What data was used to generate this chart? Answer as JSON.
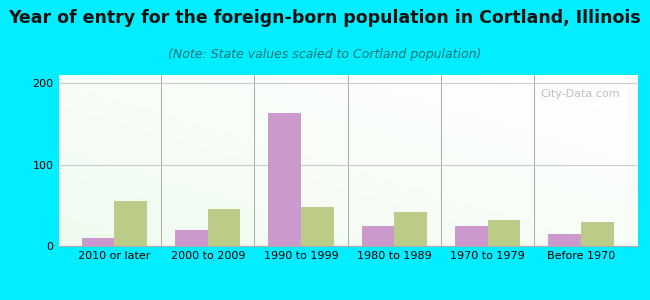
{
  "title": "Year of entry for the foreign-born population in Cortland, Illinois",
  "subtitle": "(Note: State values scaled to Cortland population)",
  "categories": [
    "2010 or later",
    "2000 to 2009",
    "1990 to 1999",
    "1980 to 1989",
    "1970 to 1979",
    "Before 1970"
  ],
  "cortland_values": [
    10,
    20,
    163,
    25,
    25,
    15
  ],
  "illinois_values": [
    55,
    45,
    48,
    42,
    32,
    30
  ],
  "cortland_color": "#cc99cc",
  "illinois_color": "#bbcc88",
  "ylim": [
    0,
    210
  ],
  "yticks": [
    0,
    100,
    200
  ],
  "bar_width": 0.35,
  "bg_color": "#00eeff",
  "title_fontsize": 12.5,
  "subtitle_fontsize": 9,
  "tick_fontsize": 8,
  "legend_fontsize": 10,
  "watermark_text": "City-Data.com",
  "grid_color": "#cccccc"
}
